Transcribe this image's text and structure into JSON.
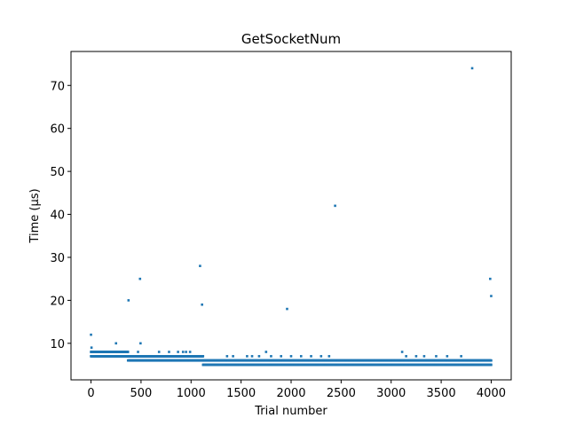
{
  "chart_data": {
    "type": "scatter",
    "title": "GetSocketNum",
    "xlabel": "Trial number",
    "ylabel": "Time (µs)",
    "xlim": [
      -200,
      4200
    ],
    "ylim": [
      1.5,
      77.9
    ],
    "xticks": [
      0,
      500,
      1000,
      1500,
      2000,
      2500,
      3000,
      3500,
      4000
    ],
    "xtick_labels": [
      "0",
      "500",
      "1000",
      "1500",
      "2000",
      "2500",
      "3000",
      "3500",
      "4000"
    ],
    "yticks": [
      10,
      20,
      30,
      40,
      50,
      60,
      70
    ],
    "ytick_labels": [
      "10",
      "20",
      "30",
      "40",
      "50",
      "60",
      "70"
    ],
    "grid": false,
    "color": "#1f77b4",
    "n_points": 4000,
    "baseline_segments": [
      {
        "from": 0,
        "to": 370,
        "values": [
          7,
          8
        ]
      },
      {
        "from": 370,
        "to": 1120,
        "values": [
          6,
          7
        ]
      },
      {
        "from": 1120,
        "to": 4000,
        "values": [
          5,
          6
        ]
      }
    ],
    "outliers": [
      {
        "x": 0,
        "y": 12
      },
      {
        "x": 5,
        "y": 9
      },
      {
        "x": 250,
        "y": 10
      },
      {
        "x": 375,
        "y": 20
      },
      {
        "x": 470,
        "y": 8
      },
      {
        "x": 490,
        "y": 25
      },
      {
        "x": 495,
        "y": 10
      },
      {
        "x": 680,
        "y": 8
      },
      {
        "x": 780,
        "y": 8
      },
      {
        "x": 870,
        "y": 8
      },
      {
        "x": 920,
        "y": 8
      },
      {
        "x": 950,
        "y": 8
      },
      {
        "x": 990,
        "y": 8
      },
      {
        "x": 1090,
        "y": 28
      },
      {
        "x": 1110,
        "y": 19
      },
      {
        "x": 1360,
        "y": 7
      },
      {
        "x": 1420,
        "y": 7
      },
      {
        "x": 1560,
        "y": 7
      },
      {
        "x": 1610,
        "y": 7
      },
      {
        "x": 1680,
        "y": 7
      },
      {
        "x": 1750,
        "y": 8
      },
      {
        "x": 1800,
        "y": 7
      },
      {
        "x": 1900,
        "y": 7
      },
      {
        "x": 1960,
        "y": 18
      },
      {
        "x": 2000,
        "y": 7
      },
      {
        "x": 2100,
        "y": 7
      },
      {
        "x": 2200,
        "y": 7
      },
      {
        "x": 2300,
        "y": 7
      },
      {
        "x": 2380,
        "y": 7
      },
      {
        "x": 2440,
        "y": 42
      },
      {
        "x": 3110,
        "y": 8
      },
      {
        "x": 3150,
        "y": 7
      },
      {
        "x": 3250,
        "y": 7
      },
      {
        "x": 3330,
        "y": 7
      },
      {
        "x": 3450,
        "y": 7
      },
      {
        "x": 3560,
        "y": 7
      },
      {
        "x": 3700,
        "y": 7
      },
      {
        "x": 3810,
        "y": 74
      },
      {
        "x": 3990,
        "y": 25
      },
      {
        "x": 4000,
        "y": 21
      }
    ]
  }
}
